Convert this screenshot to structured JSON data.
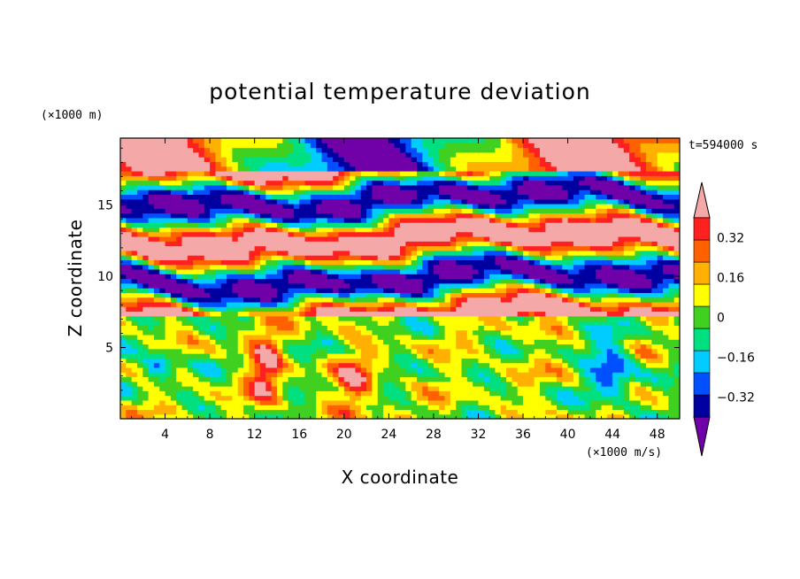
{
  "chart_data": {
    "type": "heatmap",
    "title": "potential temperature deviation",
    "xlabel": "X coordinate",
    "ylabel": "Z coordinate",
    "x_unit": "(×1000 m/s)",
    "y_unit": "(×1000 m)",
    "time_label": "t=594000 s",
    "xlim": [
      0,
      50
    ],
    "ylim": [
      0,
      19.7
    ],
    "x_ticks": [
      4,
      8,
      12,
      16,
      20,
      24,
      28,
      32,
      36,
      40,
      44,
      48
    ],
    "x_tick_labels": [
      "4",
      "8",
      "12",
      "16",
      "20",
      "24",
      "28",
      "32",
      "36",
      "40",
      "44",
      "48"
    ],
    "y_ticks": [
      5,
      10,
      15
    ],
    "y_tick_labels": [
      "5",
      "10",
      "15"
    ],
    "colorbar": {
      "levels": [
        -0.4,
        -0.32,
        -0.24,
        -0.16,
        -0.08,
        0,
        0.08,
        0.16,
        0.24,
        0.32,
        0.4
      ],
      "labeled_levels": [
        -0.32,
        -0.16,
        0,
        0.16,
        0.32
      ],
      "labels": [
        "−0.32",
        "−0.16",
        "0",
        "0.16",
        "0.32"
      ],
      "colors": [
        "#7000a8",
        "#0000a0",
        "#0050ff",
        "#00ccff",
        "#00e080",
        "#40d020",
        "#ffff00",
        "#ffb000",
        "#ff6000",
        "#ff2020",
        "#f4a8a8"
      ],
      "extend": "both"
    },
    "grid": false,
    "legend_position": "right"
  }
}
